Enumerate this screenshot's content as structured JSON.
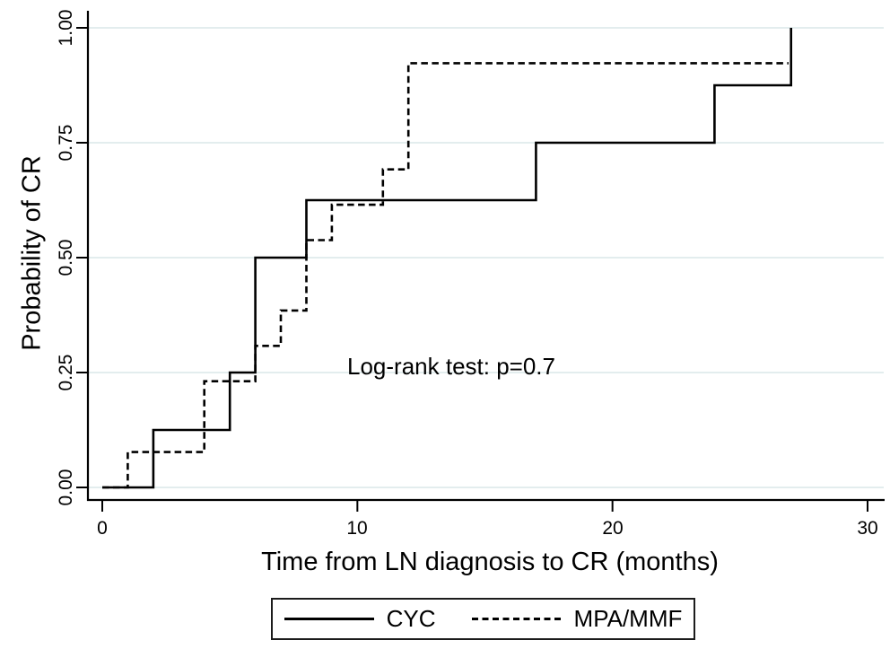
{
  "figure": {
    "background": "#ffffff",
    "line_color": "#000000",
    "grid_color": "#e3edee",
    "text_color": "#000000"
  },
  "chart_data": {
    "type": "line",
    "subtype": "kaplan-meier-step",
    "title": "",
    "xlabel": "Time from LN diagnosis to CR (months)",
    "ylabel": "Probability of CR",
    "xlim": [
      0,
      30
    ],
    "ylim": [
      0,
      1
    ],
    "x_ticks": [
      0,
      10,
      20,
      30
    ],
    "x_tick_labels": [
      "0",
      "10",
      "20",
      "30"
    ],
    "y_ticks": [
      0,
      0.25,
      0.5,
      0.75,
      1
    ],
    "y_tick_labels": [
      "0.00",
      "0.25",
      "0.50",
      "0.75",
      "1.00"
    ],
    "grid": "horizontal",
    "annotation": {
      "text": "Log-rank test: p=0.7",
      "x": 9.6,
      "y": 0.27
    },
    "legend": {
      "position": "bottom-center",
      "entries": [
        {
          "label": "CYC",
          "style": "solid"
        },
        {
          "label": "MPA/MMF",
          "style": "dashed"
        }
      ]
    },
    "series": [
      {
        "name": "CYC",
        "style": "solid",
        "color": "#000000",
        "event_months": [
          2,
          5,
          6,
          6,
          8,
          17,
          24,
          27
        ],
        "points": [
          [
            0,
            0
          ],
          [
            2,
            0
          ],
          [
            2,
            0.125
          ],
          [
            5,
            0.125
          ],
          [
            5,
            0.25
          ],
          [
            6,
            0.25
          ],
          [
            6,
            0.5
          ],
          [
            8,
            0.5
          ],
          [
            8,
            0.625
          ],
          [
            17,
            0.625
          ],
          [
            17,
            0.75
          ],
          [
            24,
            0.75
          ],
          [
            24,
            0.875
          ],
          [
            27,
            0.875
          ],
          [
            27,
            1.0
          ]
        ]
      },
      {
        "name": "MPA/MMF",
        "style": "dashed",
        "color": "#000000",
        "event_months": [
          1,
          4,
          4,
          6,
          7,
          8,
          8,
          9,
          11,
          12,
          12,
          12
        ],
        "points": [
          [
            0,
            0
          ],
          [
            1,
            0
          ],
          [
            1,
            0.077
          ],
          [
            4,
            0.077
          ],
          [
            4,
            0.231
          ],
          [
            6,
            0.231
          ],
          [
            6,
            0.308
          ],
          [
            7,
            0.308
          ],
          [
            7,
            0.385
          ],
          [
            8,
            0.385
          ],
          [
            8,
            0.538
          ],
          [
            9,
            0.538
          ],
          [
            9,
            0.615
          ],
          [
            11,
            0.615
          ],
          [
            11,
            0.692
          ],
          [
            12,
            0.692
          ],
          [
            12,
            0.923
          ],
          [
            26.9,
            0.923
          ]
        ]
      }
    ]
  }
}
